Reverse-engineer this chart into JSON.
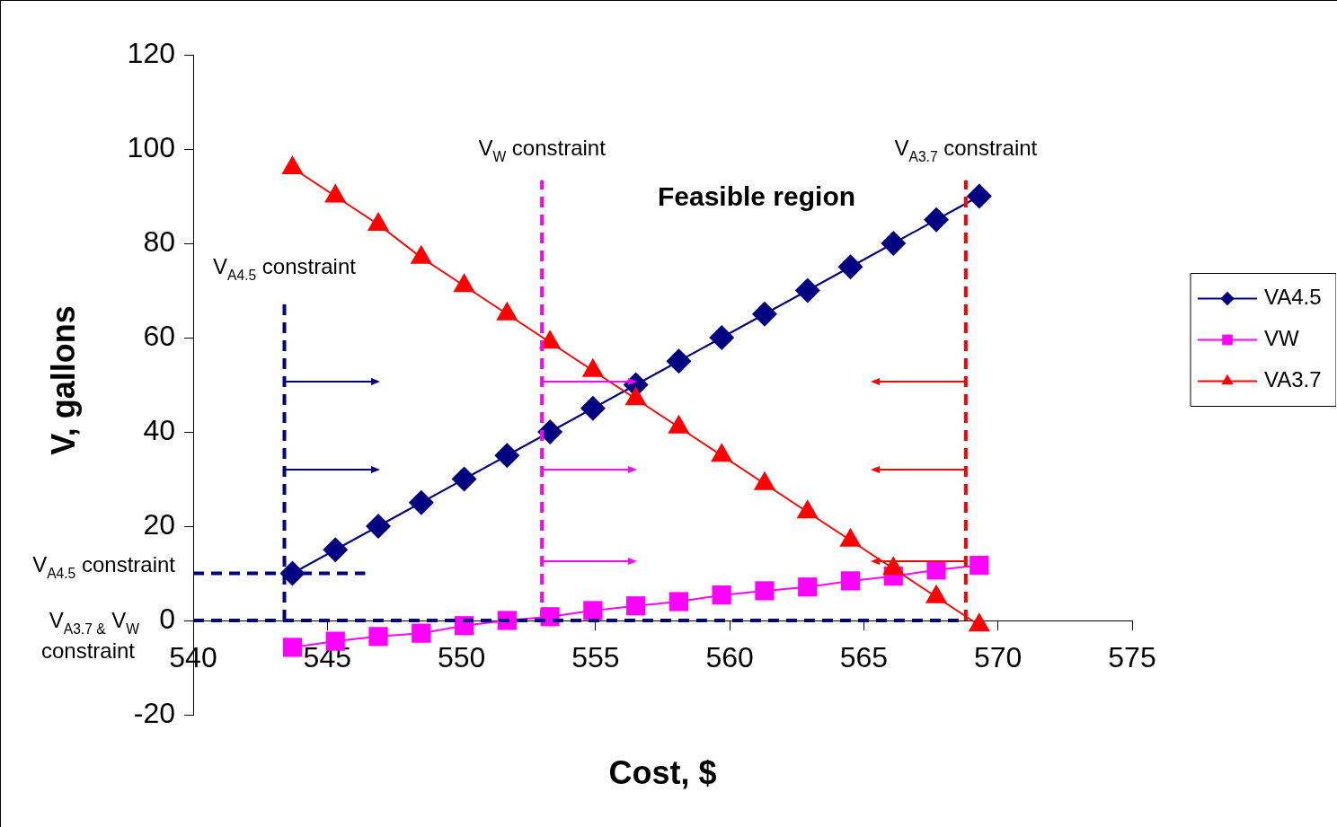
{
  "chart_data": {
    "type": "line",
    "xlabel": "Cost, $",
    "ylabel": "V, gallons",
    "xlim": [
      540,
      575
    ],
    "xticks": [
      540,
      545,
      550,
      555,
      560,
      565,
      570,
      575
    ],
    "ylim": [
      -20,
      120
    ],
    "yticks": [
      -20,
      0,
      20,
      40,
      60,
      80,
      100,
      120
    ],
    "grid": false,
    "legend": "right",
    "line_style": "solid",
    "x": [
      543.7,
      545.3,
      546.9,
      548.5,
      550.1,
      551.7,
      553.3,
      554.9,
      556.5,
      558.1,
      559.7,
      561.3,
      562.9,
      564.5,
      566.1,
      567.7,
      569.3
    ],
    "series": [
      {
        "name": "VA4.5",
        "color": "#000080",
        "marker": "diamond",
        "values": [
          10,
          15,
          20,
          25,
          30,
          35,
          40,
          45,
          50,
          55,
          60,
          65,
          70,
          75,
          80,
          85,
          90
        ]
      },
      {
        "name": "VW",
        "color": "#ff00ff",
        "marker": "square",
        "values": [
          -5.7,
          -4.4,
          -3.4,
          -2.7,
          -1.1,
          0,
          0.8,
          2.1,
          3.1,
          4,
          5.4,
          6.3,
          7.1,
          8.4,
          9.4,
          10.7,
          11.7
        ]
      },
      {
        "name": "VA3.7",
        "color": "#ff0000",
        "marker": "triangle",
        "values": [
          96,
          90,
          84,
          77,
          71,
          65,
          59,
          53,
          47,
          41,
          35,
          29,
          23,
          17,
          11,
          5,
          -1
        ]
      }
    ],
    "ref_lines": [
      {
        "axis": "x",
        "value": 543.4,
        "label": "V$_{A4.5}$ constraint",
        "color": "#000080",
        "line_style": "dashed"
      },
      {
        "axis": "x",
        "value": 553,
        "label": "V$_{W}$ constraint",
        "color": "#ff00ff",
        "line_style": "dashed"
      },
      {
        "axis": "x",
        "value": 568.8,
        "label": "V$_{A3.7}$ constraint",
        "color": "#ff0000",
        "line_style": "dashed"
      },
      {
        "axis": "y",
        "value": 10,
        "label": "V$_{A4.5}$ constraint",
        "color": "#000080",
        "line_style": "dashed"
      },
      {
        "axis": "y",
        "value": 0,
        "label": "V$_{A3.7 &}$ V$_{W}$ constraint",
        "color": "#000080",
        "line_style": "dashed"
      }
    ],
    "annotations": [
      "Feasible region"
    ]
  }
}
